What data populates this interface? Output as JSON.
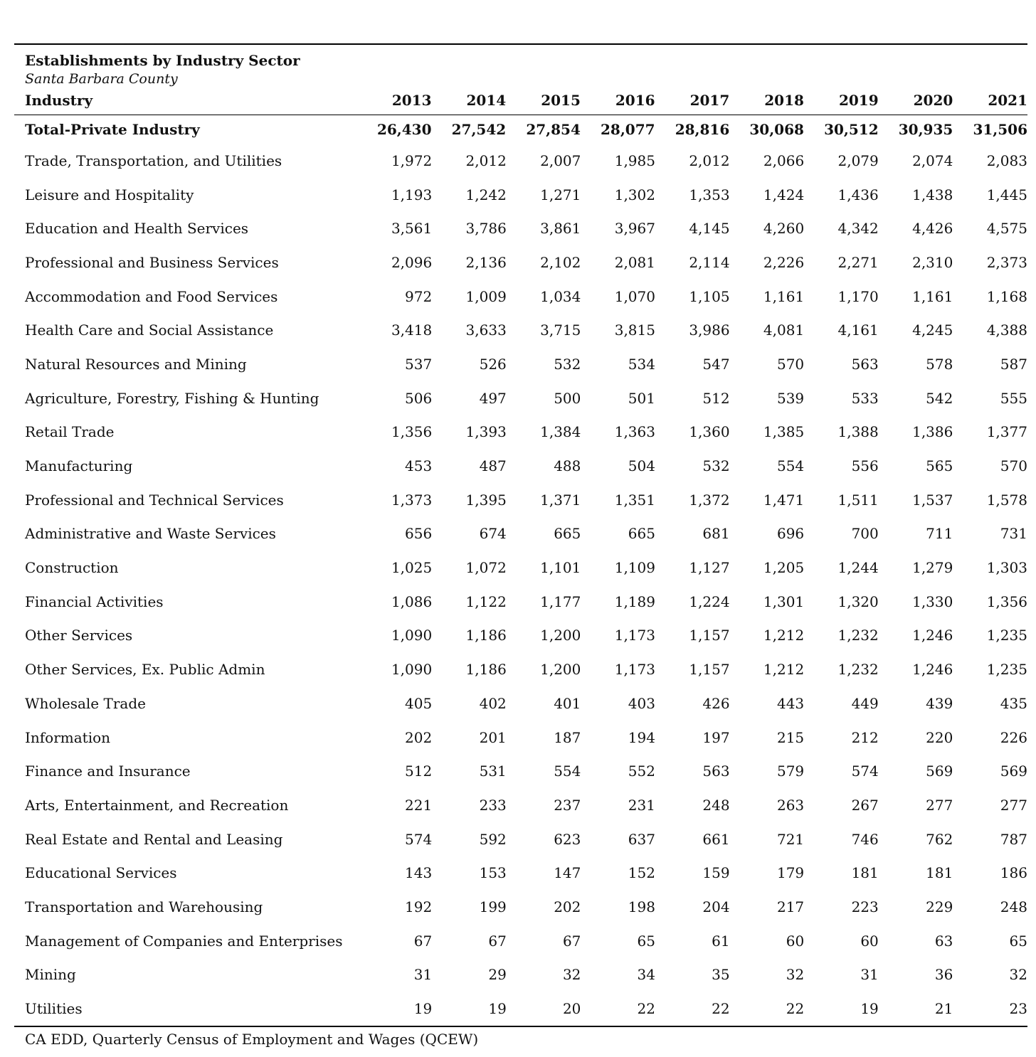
{
  "title": "Establishments by Industry Sector",
  "subtitle": "Santa Barbara County",
  "header": {
    "label": "Industry",
    "years": [
      "2013",
      "2014",
      "2015",
      "2016",
      "2017",
      "2018",
      "2019",
      "2020",
      "2021"
    ]
  },
  "total": {
    "label": "Total-Private Industry",
    "values": [
      "26,430",
      "27,542",
      "27,854",
      "28,077",
      "28,816",
      "30,068",
      "30,512",
      "30,935",
      "31,506"
    ]
  },
  "rows": [
    {
      "label": "Trade, Transportation, and Utilities",
      "values": [
        "1,972",
        "2,012",
        "2,007",
        "1,985",
        "2,012",
        "2,066",
        "2,079",
        "2,074",
        "2,083"
      ]
    },
    {
      "label": "Leisure and Hospitality",
      "values": [
        "1,193",
        "1,242",
        "1,271",
        "1,302",
        "1,353",
        "1,424",
        "1,436",
        "1,438",
        "1,445"
      ]
    },
    {
      "label": "Education and Health Services",
      "values": [
        "3,561",
        "3,786",
        "3,861",
        "3,967",
        "4,145",
        "4,260",
        "4,342",
        "4,426",
        "4,575"
      ]
    },
    {
      "label": "Professional and Business Services",
      "values": [
        "2,096",
        "2,136",
        "2,102",
        "2,081",
        "2,114",
        "2,226",
        "2,271",
        "2,310",
        "2,373"
      ]
    },
    {
      "label": "Accommodation and Food Services",
      "values": [
        "972",
        "1,009",
        "1,034",
        "1,070",
        "1,105",
        "1,161",
        "1,170",
        "1,161",
        "1,168"
      ]
    },
    {
      "label": "Health Care and Social Assistance",
      "values": [
        "3,418",
        "3,633",
        "3,715",
        "3,815",
        "3,986",
        "4,081",
        "4,161",
        "4,245",
        "4,388"
      ]
    },
    {
      "label": "Natural Resources and Mining",
      "values": [
        "537",
        "526",
        "532",
        "534",
        "547",
        "570",
        "563",
        "578",
        "587"
      ]
    },
    {
      "label": "Agriculture, Forestry, Fishing & Hunting",
      "values": [
        "506",
        "497",
        "500",
        "501",
        "512",
        "539",
        "533",
        "542",
        "555"
      ]
    },
    {
      "label": "Retail Trade",
      "values": [
        "1,356",
        "1,393",
        "1,384",
        "1,363",
        "1,360",
        "1,385",
        "1,388",
        "1,386",
        "1,377"
      ]
    },
    {
      "label": "Manufacturing",
      "values": [
        "453",
        "487",
        "488",
        "504",
        "532",
        "554",
        "556",
        "565",
        "570"
      ]
    },
    {
      "label": "Professional and Technical Services",
      "values": [
        "1,373",
        "1,395",
        "1,371",
        "1,351",
        "1,372",
        "1,471",
        "1,511",
        "1,537",
        "1,578"
      ]
    },
    {
      "label": "Administrative and Waste Services",
      "values": [
        "656",
        "674",
        "665",
        "665",
        "681",
        "696",
        "700",
        "711",
        "731"
      ]
    },
    {
      "label": "Construction",
      "values": [
        "1,025",
        "1,072",
        "1,101",
        "1,109",
        "1,127",
        "1,205",
        "1,244",
        "1,279",
        "1,303"
      ]
    },
    {
      "label": "Financial Activities",
      "values": [
        "1,086",
        "1,122",
        "1,177",
        "1,189",
        "1,224",
        "1,301",
        "1,320",
        "1,330",
        "1,356"
      ]
    },
    {
      "label": "Other Services",
      "values": [
        "1,090",
        "1,186",
        "1,200",
        "1,173",
        "1,157",
        "1,212",
        "1,232",
        "1,246",
        "1,235"
      ]
    },
    {
      "label": "Other Services, Ex. Public Admin",
      "values": [
        "1,090",
        "1,186",
        "1,200",
        "1,173",
        "1,157",
        "1,212",
        "1,232",
        "1,246",
        "1,235"
      ]
    },
    {
      "label": "Wholesale Trade",
      "values": [
        "405",
        "402",
        "401",
        "403",
        "426",
        "443",
        "449",
        "439",
        "435"
      ]
    },
    {
      "label": "Information",
      "values": [
        "202",
        "201",
        "187",
        "194",
        "197",
        "215",
        "212",
        "220",
        "226"
      ]
    },
    {
      "label": "Finance and Insurance",
      "values": [
        "512",
        "531",
        "554",
        "552",
        "563",
        "579",
        "574",
        "569",
        "569"
      ]
    },
    {
      "label": "Arts, Entertainment, and Recreation",
      "values": [
        "221",
        "233",
        "237",
        "231",
        "248",
        "263",
        "267",
        "277",
        "277"
      ]
    },
    {
      "label": "Real Estate and Rental and Leasing",
      "values": [
        "574",
        "592",
        "623",
        "637",
        "661",
        "721",
        "746",
        "762",
        "787"
      ]
    },
    {
      "label": "Educational Services",
      "values": [
        "143",
        "153",
        "147",
        "152",
        "159",
        "179",
        "181",
        "181",
        "186"
      ]
    },
    {
      "label": "Transportation and Warehousing",
      "values": [
        "192",
        "199",
        "202",
        "198",
        "204",
        "217",
        "223",
        "229",
        "248"
      ]
    },
    {
      "label": "Management of Companies and Enterprises",
      "values": [
        "67",
        "67",
        "67",
        "65",
        "61",
        "60",
        "60",
        "63",
        "65"
      ]
    },
    {
      "label": "Mining",
      "values": [
        "31",
        "29",
        "32",
        "34",
        "35",
        "32",
        "31",
        "36",
        "32"
      ]
    },
    {
      "label": "Utilities",
      "values": [
        "19",
        "19",
        "20",
        "22",
        "22",
        "22",
        "19",
        "21",
        "23"
      ]
    }
  ],
  "source": "CA EDD, Quarterly Census of Employment and Wages (QCEW)"
}
